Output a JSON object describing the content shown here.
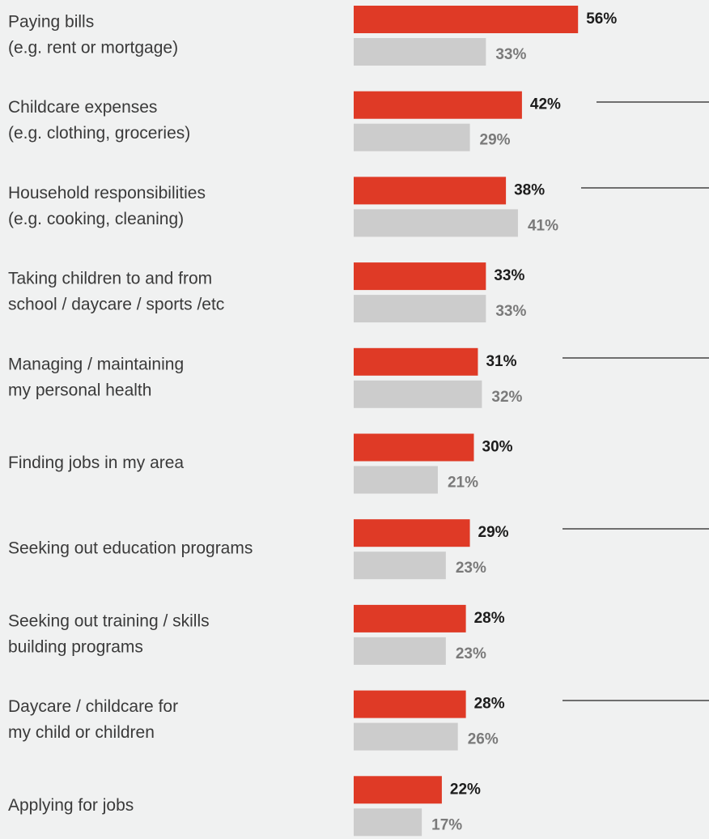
{
  "chart_data": {
    "type": "bar",
    "orientation": "horizontal",
    "categories": [
      [
        "Paying bills",
        "(e.g. rent or mortgage)"
      ],
      [
        "Childcare expenses",
        "(e.g. clothing, groceries)"
      ],
      [
        "Household responsibilities",
        "(e.g. cooking, cleaning)"
      ],
      [
        "Taking children to and from",
        "school / daycare / sports /etc"
      ],
      [
        "Managing / maintaining",
        "my personal health"
      ],
      [
        "Finding jobs in my area"
      ],
      [
        "Seeking out education programs"
      ],
      [
        "Seeking out training / skills",
        "building programs"
      ],
      [
        "Daycare / childcare for",
        "my child or children"
      ],
      [
        "Applying for jobs"
      ]
    ],
    "series": [
      {
        "color": "#df3a26",
        "values": [
          56,
          42,
          38,
          33,
          31,
          30,
          29,
          28,
          28,
          22
        ],
        "value_labels": [
          "56%",
          "42%",
          "38%",
          "33%",
          "31%",
          "30%",
          "29%",
          "28%",
          "28%",
          "22%"
        ]
      },
      {
        "color": "#cccccc",
        "values": [
          33,
          29,
          41,
          33,
          32,
          21,
          23,
          23,
          26,
          17
        ],
        "value_labels": [
          "33%",
          "29%",
          "41%",
          "33%",
          "32%",
          "21%",
          "23%",
          "23%",
          "26%",
          "17%"
        ]
      }
    ]
  }
}
